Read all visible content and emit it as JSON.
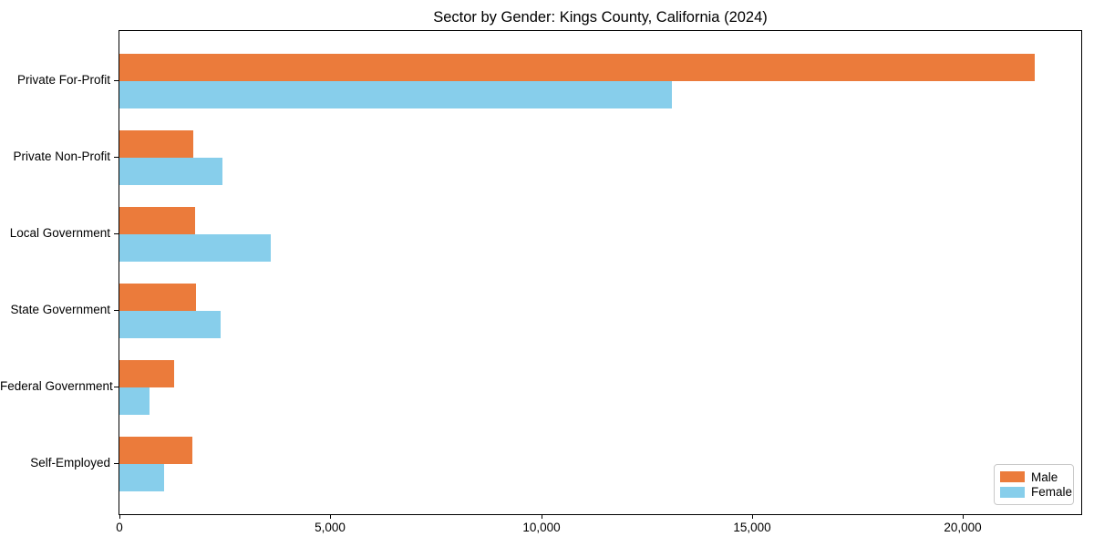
{
  "title": "Sector by Gender: Kings County, California (2024)",
  "chart_data": {
    "type": "bar",
    "orientation": "horizontal",
    "title": "Sector by Gender: Kings County, California (2024)",
    "categories": [
      "Private For-Profit",
      "Private Non-Profit",
      "Local Government",
      "State Government",
      "Federal Government",
      "Self-Employed"
    ],
    "series": [
      {
        "name": "Male",
        "color": "#EB7B3B",
        "values": [
          21700,
          1750,
          1800,
          1820,
          1300,
          1720
        ]
      },
      {
        "name": "Female",
        "color": "#87CEEB",
        "values": [
          13100,
          2450,
          3580,
          2390,
          710,
          1050
        ]
      }
    ],
    "xlabel": "",
    "ylabel": "",
    "xlim": [
      0,
      22800
    ],
    "xticks": {
      "values": [
        0,
        5000,
        10000,
        15000,
        20000
      ],
      "labels": [
        "0",
        "5,000",
        "10,000",
        "15,000",
        "20,000"
      ]
    },
    "grid": false,
    "legend": {
      "position": "lower right",
      "items": [
        "Male",
        "Female"
      ]
    }
  },
  "colors": {
    "axis": "#000000",
    "background": "#ffffff",
    "legend_border": "#c9c9c9",
    "text": "#000000"
  }
}
